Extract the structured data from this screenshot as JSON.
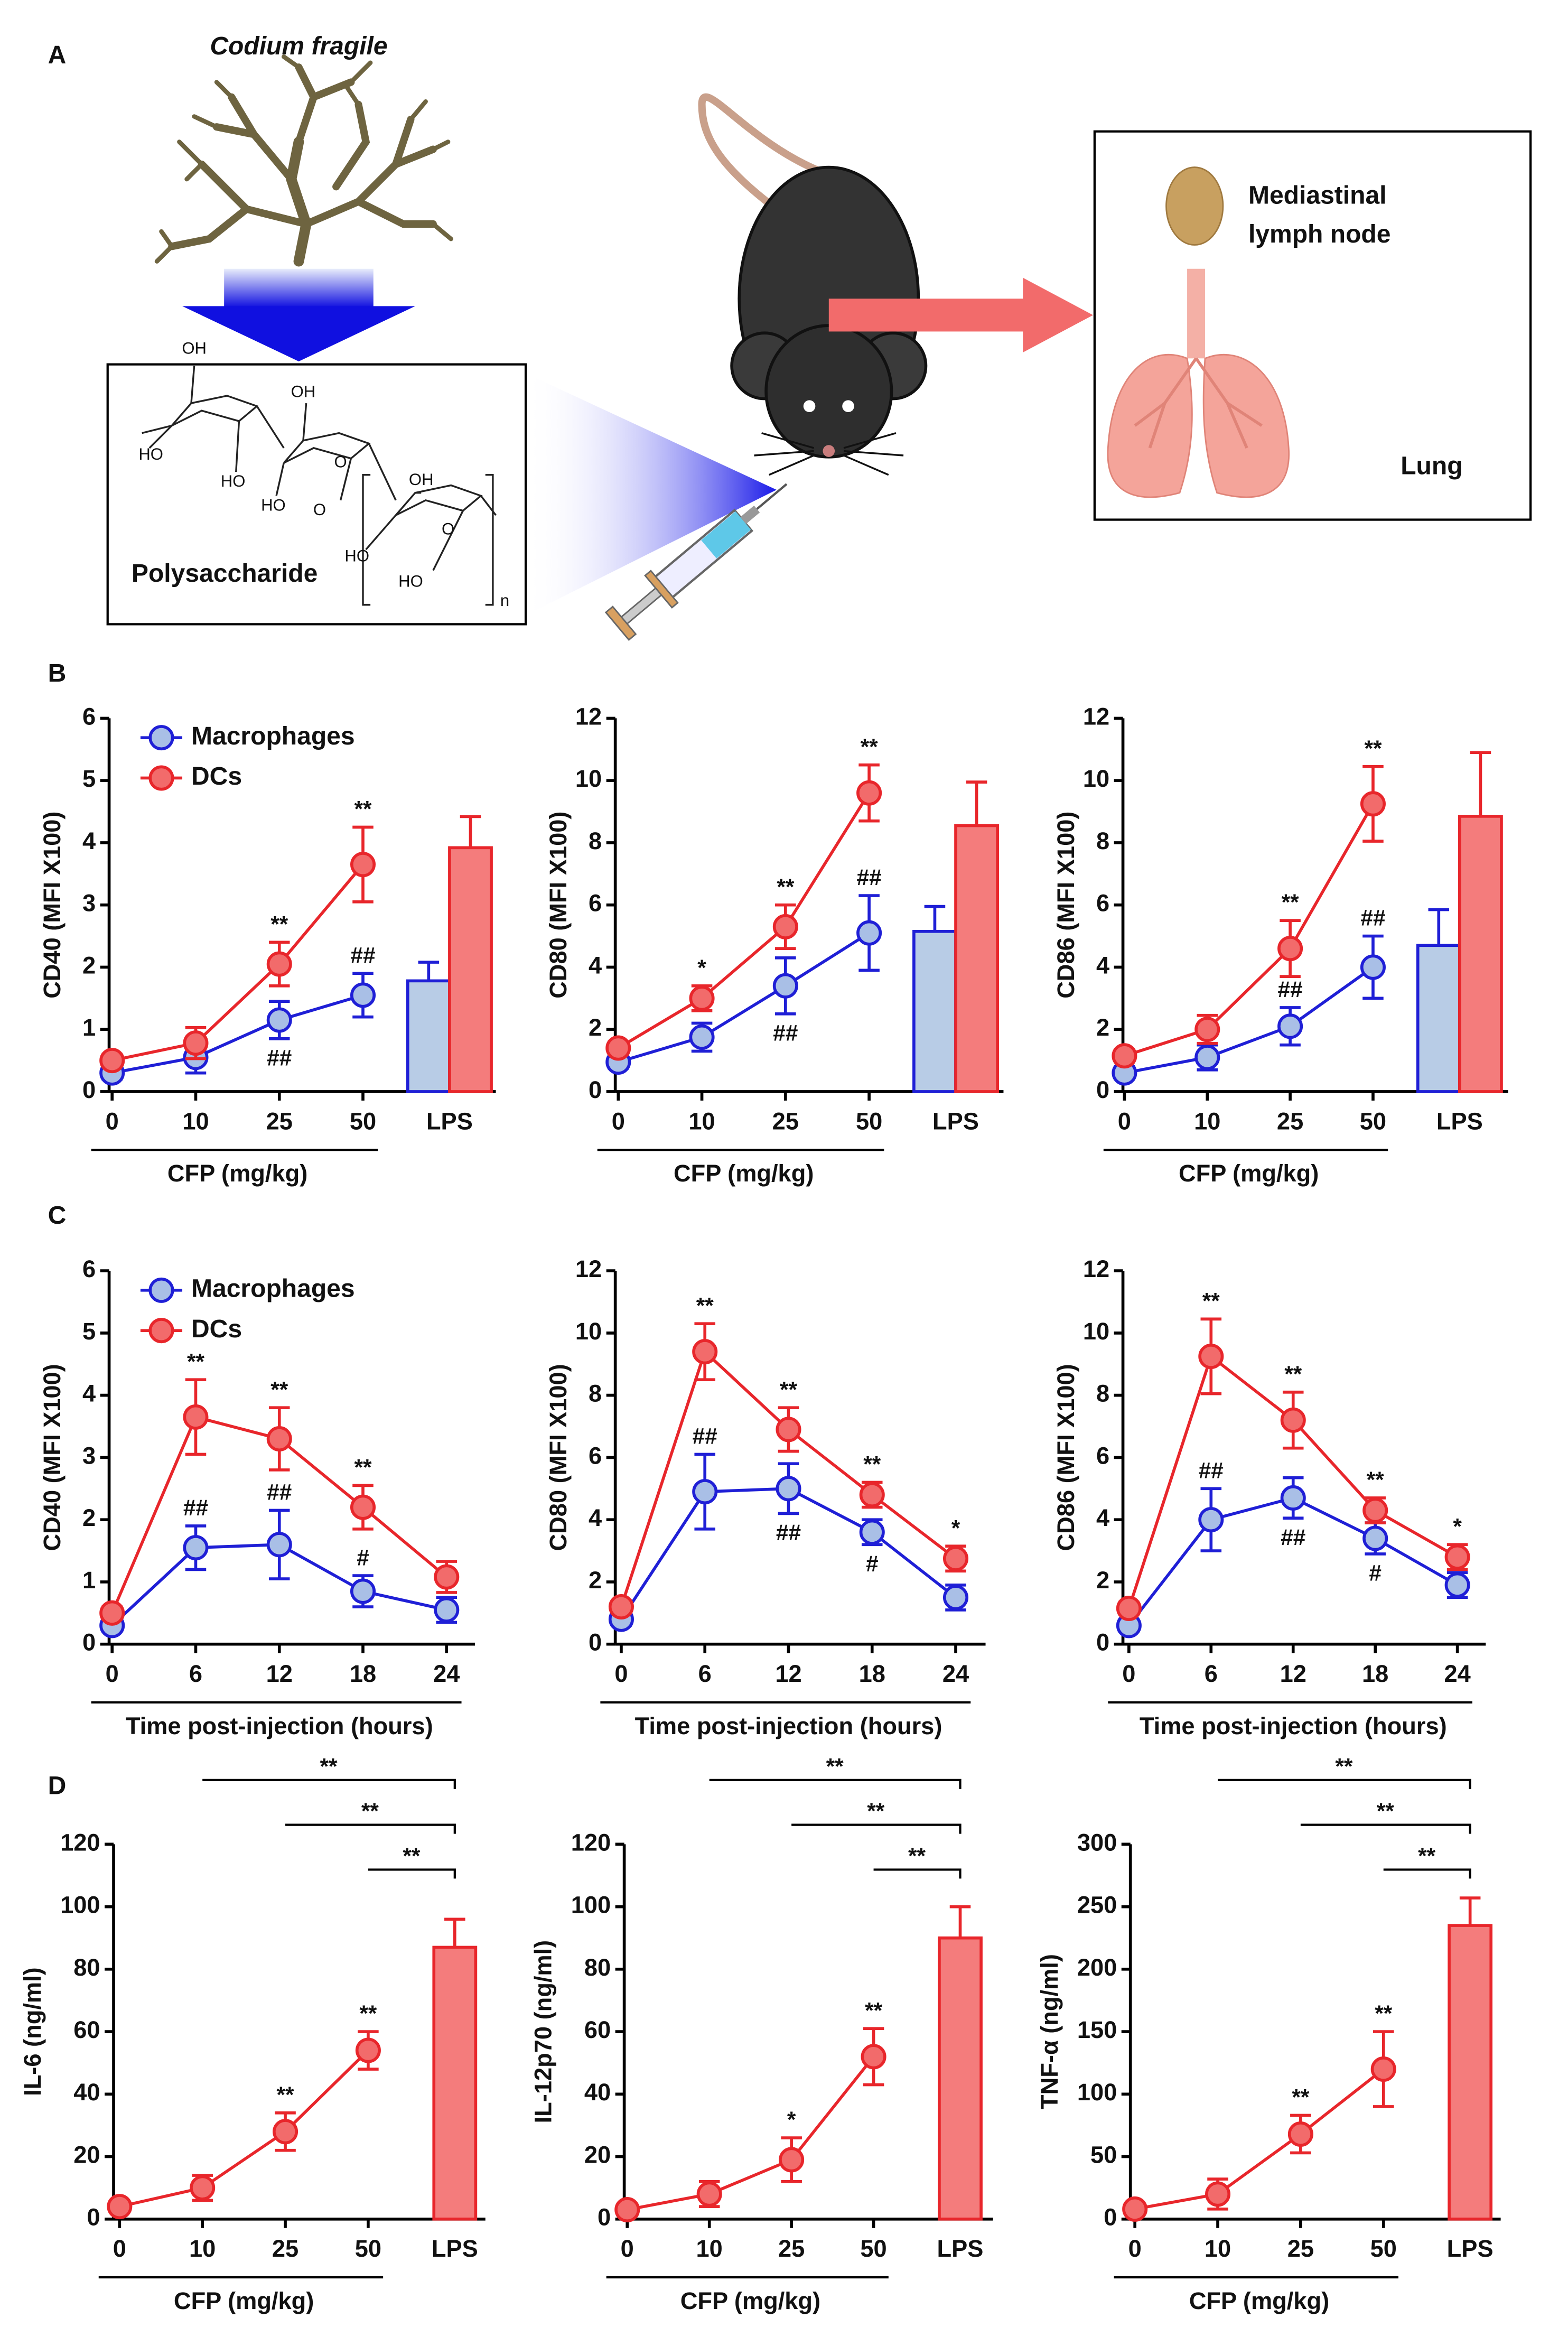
{
  "figure": {
    "panels": [
      "A",
      "B",
      "C",
      "D"
    ],
    "panel_a": {
      "species": "Codium fragile",
      "compound": "Polysaccharide",
      "structure_atoms": [
        "OH",
        "HO",
        "HO",
        "OH",
        "HO",
        "O",
        "O",
        "OH",
        "HO",
        "HO",
        "O",
        "n"
      ],
      "organs": [
        "Mediastinal",
        "lymph node",
        "Lung"
      ]
    }
  },
  "chart_data": [
    {
      "type": "line",
      "ylabel": "CD40 (MFI X100)",
      "xlabel": "CFP (mg/kg)",
      "categories": [
        "0",
        "10",
        "25",
        "50"
      ],
      "bar_category": "LPS",
      "ylim": [
        0,
        6
      ],
      "yticks": [
        0,
        1,
        2,
        3,
        4,
        5,
        6
      ],
      "legend": "upper left",
      "series": [
        {
          "name": "Macrophages",
          "color": "#1f1fd6",
          "fill": "#a9bfe6",
          "bar_fill": "#b8cce6",
          "values": [
            0.3,
            0.55,
            1.15,
            1.55
          ],
          "errors": [
            0.1,
            0.25,
            0.3,
            0.35
          ],
          "labels": [
            null,
            null,
            "##",
            "##"
          ],
          "bar_value": 1.78,
          "bar_error": 0.3
        },
        {
          "name": "DCs",
          "color": "#e8262b",
          "fill": "#f26b6b",
          "bar_fill": "#f47c7c",
          "values": [
            0.5,
            0.78,
            2.05,
            3.65
          ],
          "errors": [
            0.1,
            0.25,
            0.35,
            0.6
          ],
          "labels": [
            null,
            null,
            "**",
            "**"
          ],
          "bar_value": 3.92,
          "bar_error": 0.5
        }
      ]
    },
    {
      "type": "line",
      "ylabel": "CD80 (MFI X100)",
      "xlabel": "CFP (mg/kg)",
      "categories": [
        "0",
        "10",
        "25",
        "50"
      ],
      "bar_category": "LPS",
      "ylim": [
        0,
        12
      ],
      "yticks": [
        0,
        2,
        4,
        6,
        8,
        10,
        12
      ],
      "series": [
        {
          "color": "#1f1fd6",
          "fill": "#a9bfe6",
          "bar_fill": "#b8cce6",
          "values": [
            0.95,
            1.75,
            3.4,
            5.1
          ],
          "errors": [
            0.2,
            0.45,
            0.9,
            1.2
          ],
          "labels": [
            null,
            null,
            "##",
            "##"
          ],
          "bar_value": 5.15,
          "bar_error": 0.8
        },
        {
          "color": "#e8262b",
          "fill": "#f26b6b",
          "bar_fill": "#f47c7c",
          "values": [
            1.4,
            3.0,
            5.3,
            9.6
          ],
          "errors": [
            0.2,
            0.4,
            0.7,
            0.9
          ],
          "labels": [
            null,
            "*",
            "**",
            "**"
          ],
          "bar_value": 8.55,
          "bar_error": 1.4
        }
      ]
    },
    {
      "type": "line",
      "ylabel": "CD86 (MFI X100)",
      "xlabel": "CFP (mg/kg)",
      "categories": [
        "0",
        "10",
        "25",
        "50"
      ],
      "bar_category": "LPS",
      "ylim": [
        0,
        12
      ],
      "yticks": [
        0,
        2,
        4,
        6,
        8,
        10,
        12
      ],
      "series": [
        {
          "color": "#1f1fd6",
          "fill": "#a9bfe6",
          "bar_fill": "#b8cce6",
          "values": [
            0.6,
            1.1,
            2.1,
            4.0
          ],
          "errors": [
            0.2,
            0.4,
            0.6,
            1.0
          ],
          "labels": [
            null,
            null,
            "##",
            "##"
          ],
          "bar_value": 4.7,
          "bar_error": 1.15
        },
        {
          "color": "#e8262b",
          "fill": "#f26b6b",
          "bar_fill": "#f47c7c",
          "values": [
            1.15,
            2.0,
            4.6,
            9.25
          ],
          "errors": [
            0.2,
            0.45,
            0.9,
            1.2
          ],
          "labels": [
            null,
            null,
            "**",
            "**"
          ],
          "bar_value": 8.85,
          "bar_error": 2.05
        }
      ]
    },
    {
      "type": "line",
      "ylabel": "CD40 (MFI X100)",
      "xlabel": "Time post-injection (hours)",
      "categories": [
        "0",
        "6",
        "12",
        "18",
        "24"
      ],
      "ylim": [
        0,
        6
      ],
      "yticks": [
        0,
        1,
        2,
        3,
        4,
        5,
        6
      ],
      "legend": "upper left",
      "series": [
        {
          "name": "Macrophages",
          "color": "#1f1fd6",
          "fill": "#a9bfe6",
          "values": [
            0.3,
            1.55,
            1.6,
            0.85,
            0.55
          ],
          "errors": [
            0.1,
            0.35,
            0.55,
            0.25,
            0.2
          ],
          "labels": [
            null,
            "##",
            "##",
            "#",
            null
          ]
        },
        {
          "name": "DCs",
          "color": "#e8262b",
          "fill": "#f26b6b",
          "values": [
            0.5,
            3.65,
            3.3,
            2.2,
            1.08
          ],
          "errors": [
            0.1,
            0.6,
            0.5,
            0.35,
            0.25
          ],
          "labels": [
            null,
            "**",
            "**",
            "**",
            null
          ]
        }
      ]
    },
    {
      "type": "line",
      "ylabel": "CD80 (MFI X100)",
      "xlabel": "Time post-injection (hours)",
      "categories": [
        "0",
        "6",
        "12",
        "18",
        "24"
      ],
      "ylim": [
        0,
        12
      ],
      "yticks": [
        0,
        2,
        4,
        6,
        8,
        10,
        12
      ],
      "series": [
        {
          "color": "#1f1fd6",
          "fill": "#a9bfe6",
          "values": [
            0.8,
            4.9,
            5.0,
            3.6,
            1.5
          ],
          "errors": [
            0.2,
            1.2,
            0.8,
            0.4,
            0.4
          ],
          "labels": [
            null,
            "##",
            "##",
            "#",
            null
          ]
        },
        {
          "color": "#e8262b",
          "fill": "#f26b6b",
          "values": [
            1.2,
            9.4,
            6.9,
            4.8,
            2.75
          ],
          "errors": [
            0.2,
            0.9,
            0.7,
            0.4,
            0.4
          ],
          "labels": [
            null,
            "**",
            "**",
            "**",
            "*"
          ]
        }
      ]
    },
    {
      "type": "line",
      "ylabel": "CD86 (MFI X100)",
      "xlabel": "Time post-injection (hours)",
      "categories": [
        "0",
        "6",
        "12",
        "18",
        "24"
      ],
      "ylim": [
        0,
        12
      ],
      "yticks": [
        0,
        2,
        4,
        6,
        8,
        10,
        12
      ],
      "series": [
        {
          "color": "#1f1fd6",
          "fill": "#a9bfe6",
          "values": [
            0.6,
            4.0,
            4.7,
            3.4,
            1.9
          ],
          "errors": [
            0.2,
            1.0,
            0.65,
            0.5,
            0.4
          ],
          "labels": [
            null,
            "##",
            "##",
            "#",
            null
          ]
        },
        {
          "color": "#e8262b",
          "fill": "#f26b6b",
          "values": [
            1.15,
            9.25,
            7.2,
            4.3,
            2.8
          ],
          "errors": [
            0.2,
            1.2,
            0.9,
            0.4,
            0.4
          ],
          "labels": [
            null,
            "**",
            "**",
            "**",
            "*"
          ]
        }
      ]
    },
    {
      "type": "line",
      "ylabel": "IL-6 (ng/ml)",
      "xlabel": "CFP (mg/kg)",
      "categories": [
        "0",
        "10",
        "25",
        "50"
      ],
      "bar_category": "LPS",
      "ylim": [
        0,
        120
      ],
      "yticks": [
        0,
        20,
        40,
        60,
        80,
        100,
        120
      ],
      "series": [
        {
          "color": "#e8262b",
          "fill": "#f26b6b",
          "bar_fill": "#f47c7c",
          "values": [
            4,
            10,
            28,
            54
          ],
          "errors": [
            1,
            4,
            6,
            6
          ],
          "labels": [
            null,
            null,
            "**",
            "**"
          ],
          "bar_value": 87,
          "bar_error": 9
        }
      ],
      "brackets": [
        {
          "from": "10",
          "label": "**"
        },
        {
          "from": "25",
          "label": "**"
        },
        {
          "from": "50",
          "label": "**"
        }
      ]
    },
    {
      "type": "line",
      "ylabel": "IL-12p70 (ng/ml)",
      "xlabel": "CFP (mg/kg)",
      "categories": [
        "0",
        "10",
        "25",
        "50"
      ],
      "bar_category": "LPS",
      "ylim": [
        0,
        120
      ],
      "yticks": [
        0,
        20,
        40,
        60,
        80,
        100,
        120
      ],
      "series": [
        {
          "color": "#e8262b",
          "fill": "#f26b6b",
          "bar_fill": "#f47c7c",
          "values": [
            3,
            8,
            19,
            52
          ],
          "errors": [
            1,
            4,
            7,
            9
          ],
          "labels": [
            null,
            null,
            "*",
            "**"
          ],
          "bar_value": 90,
          "bar_error": 10
        }
      ],
      "brackets": [
        {
          "from": "10",
          "label": "**"
        },
        {
          "from": "25",
          "label": "**"
        },
        {
          "from": "50",
          "label": "**"
        }
      ]
    },
    {
      "type": "line",
      "ylabel": "TNF-α (ng/ml)",
      "xlabel": "CFP (mg/kg)",
      "categories": [
        "0",
        "10",
        "25",
        "50"
      ],
      "bar_category": "LPS",
      "ylim": [
        0,
        300
      ],
      "yticks": [
        0,
        50,
        100,
        150,
        200,
        250,
        300
      ],
      "series": [
        {
          "color": "#e8262b",
          "fill": "#f26b6b",
          "bar_fill": "#f47c7c",
          "values": [
            8,
            20,
            68,
            120
          ],
          "errors": [
            3,
            12,
            15,
            30
          ],
          "labels": [
            null,
            null,
            "**",
            "**"
          ],
          "bar_value": 235,
          "bar_error": 22
        }
      ],
      "brackets": [
        {
          "from": "10",
          "label": "**"
        },
        {
          "from": "25",
          "label": "**"
        },
        {
          "from": "50",
          "label": "**"
        }
      ]
    }
  ]
}
